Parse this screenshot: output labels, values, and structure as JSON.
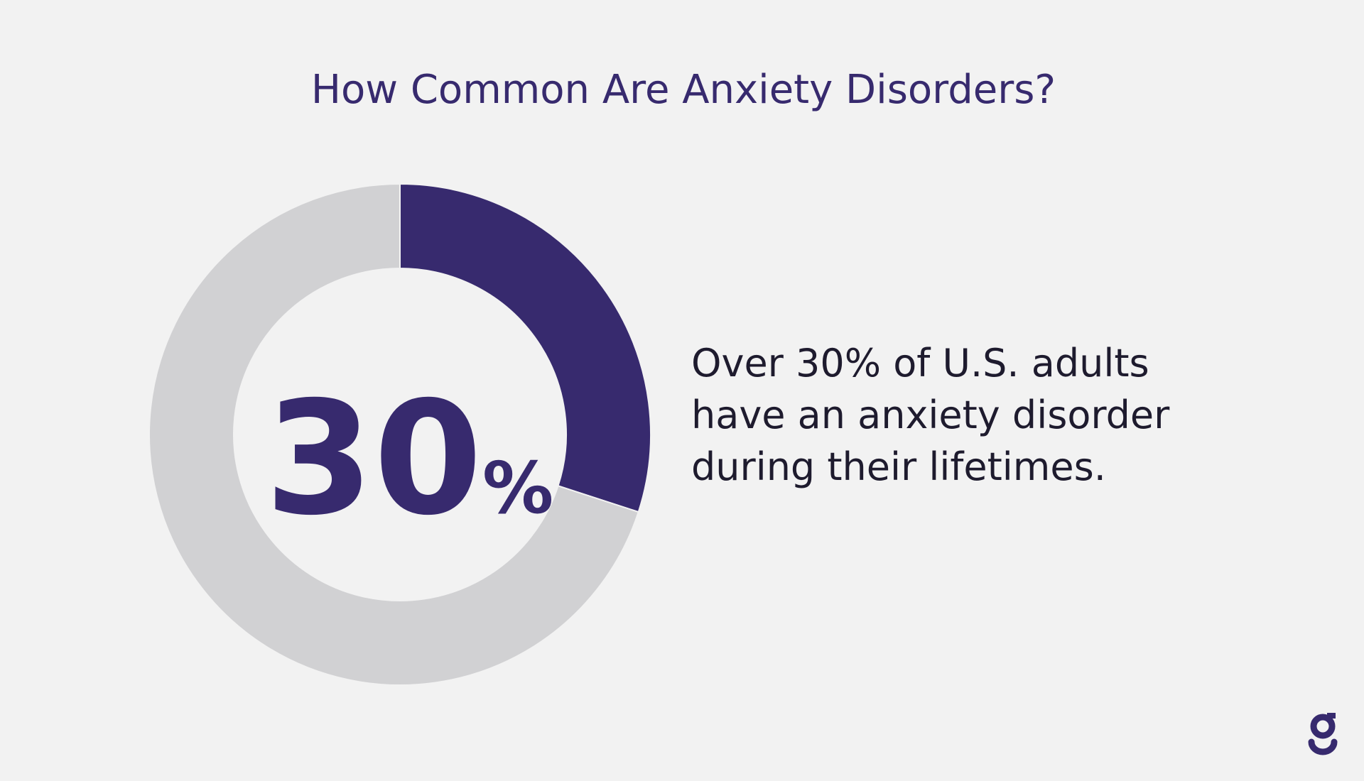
{
  "chart_data": {
    "type": "pie",
    "donut": true,
    "title": "How Common Are Anxiety Disorders?",
    "values": [
      30,
      70
    ],
    "value_labels": [
      "30%",
      null
    ],
    "colors": [
      "#372a6e",
      "#d1d1d3"
    ],
    "annotation": [
      "Over 30% of U.S. adults",
      "have an anxiety disorder",
      "during their lifetimes."
    ]
  }
}
